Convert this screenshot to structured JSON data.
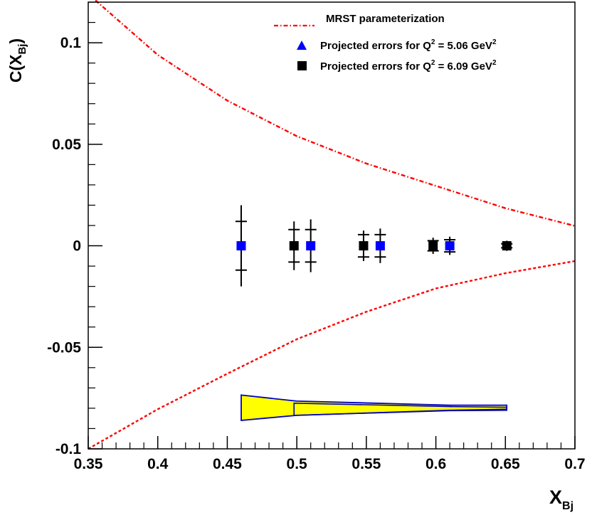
{
  "chart_data": {
    "type": "scatter",
    "xlabel": {
      "main": "X",
      "sub": "Bj"
    },
    "ylabel": {
      "main": "C(X",
      "sub": "Bj",
      "close": ")"
    },
    "xlim": [
      0.35,
      0.7
    ],
    "ylim": [
      -0.1,
      0.12
    ],
    "x_ticks": [
      0.35,
      0.4,
      0.45,
      0.5,
      0.55,
      0.6,
      0.65,
      0.7
    ],
    "x_tick_labels": [
      "0.35",
      "0.4",
      "0.45",
      "0.5",
      "0.55",
      "0.6",
      "0.65",
      "0.7"
    ],
    "y_ticks": [
      -0.1,
      -0.05,
      0,
      0.05,
      0.1
    ],
    "y_tick_labels": [
      "-0.1",
      "-0.05",
      "0",
      "0.05",
      "0.1"
    ],
    "grid": false,
    "legend_position": "top-right",
    "legend": [
      {
        "text": "MRST parameterization",
        "marker": "dash-dot-line",
        "color": "#ff0000"
      },
      {
        "text_pre": "Projected errors for Q",
        "sup1": "2",
        "text_mid": " = 5.06 GeV",
        "sup2": "2",
        "marker": "triangle",
        "color": "#0000ff"
      },
      {
        "text_pre": "Projected errors for Q",
        "sup1": "2",
        "text_mid": " = 6.09 GeV",
        "sup2": "2",
        "marker": "square",
        "color": "#000000"
      }
    ],
    "series": [
      {
        "name": "Projected errors for Q² = 5.06 GeV²",
        "marker_color": "#0000ff",
        "x": [
          0.46,
          0.51,
          0.56,
          0.61
        ],
        "y": [
          0,
          0,
          0,
          0
        ],
        "err_inner": [
          0.012,
          0.008,
          0.0055,
          0.003
        ],
        "err_outer": [
          0.02,
          0.013,
          0.0085,
          0.0045
        ]
      },
      {
        "name": "Projected errors for Q² = 6.09 GeV²",
        "marker_color": "#000000",
        "x": [
          0.498,
          0.548,
          0.598,
          0.651
        ],
        "y": [
          0,
          0,
          0,
          0
        ],
        "err_inner": [
          0.008,
          0.0055,
          0.0025,
          0.001
        ],
        "err_outer": [
          0.012,
          0.0075,
          0.004,
          0.0025
        ]
      }
    ],
    "curves": [
      {
        "name": "MRST parameterization",
        "style": "dash-dot",
        "color": "#ff0000",
        "x": [
          0.35,
          0.4,
          0.45,
          0.5,
          0.55,
          0.6,
          0.65,
          0.7
        ],
        "y": [
          0.124,
          0.094,
          0.0715,
          0.054,
          0.0405,
          0.0295,
          0.0185,
          0.0098
        ]
      },
      {
        "name": "MRST lower bound",
        "style": "dotted",
        "color": "#ff0000",
        "x": [
          0.35,
          0.4,
          0.45,
          0.5,
          0.55,
          0.6,
          0.65,
          0.7
        ],
        "y": [
          -0.1,
          -0.0805,
          -0.063,
          -0.046,
          -0.0325,
          -0.021,
          -0.0135,
          -0.0075
        ]
      }
    ],
    "systematic_band": {
      "fill": "#ffff00",
      "stroke": "#0000c0",
      "outer": {
        "x": [
          0.46,
          0.5,
          0.61,
          0.651
        ],
        "upper": [
          -0.0735,
          -0.0765,
          -0.0785,
          -0.0785
        ],
        "lower": [
          -0.086,
          -0.0835,
          -0.081,
          -0.0805
        ]
      },
      "inner": {
        "x": [
          0.498,
          0.61,
          0.651
        ],
        "upper": [
          -0.0775,
          -0.0792,
          -0.0795
        ],
        "lower": [
          -0.0835,
          -0.0812,
          -0.081
        ]
      }
    }
  }
}
